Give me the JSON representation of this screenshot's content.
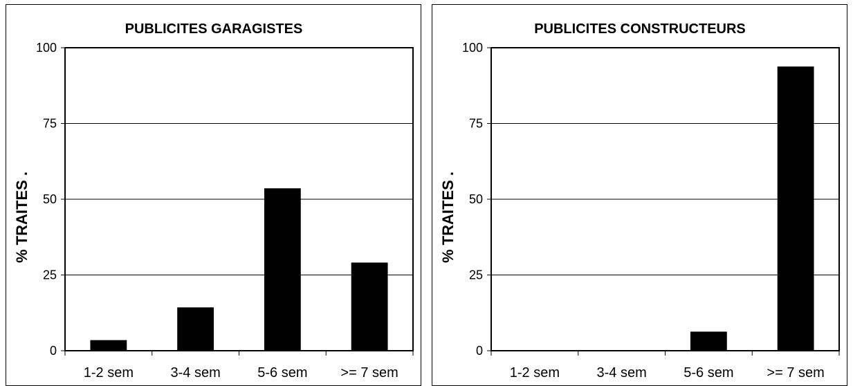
{
  "chart_data": [
    {
      "type": "bar",
      "title": "PUBLICITES GARAGISTES",
      "ylabel": "% TRAITES   .",
      "xlabel": "",
      "categories": [
        "1-2 sem",
        "3-4 sem",
        "5-6 sem",
        ">= 7 sem"
      ],
      "values": [
        3.5,
        14.3,
        53.6,
        29.1
      ],
      "ylim": [
        0,
        100
      ],
      "yticks": [
        "0",
        "25",
        "50",
        "75",
        "100"
      ],
      "grid": true,
      "bar_color": "#000000"
    },
    {
      "type": "bar",
      "title": "PUBLICITES CONSTRUCTEURS",
      "ylabel": "% TRAITES   .",
      "xlabel": "",
      "categories": [
        "1-2 sem",
        "3-4 sem",
        "5-6 sem",
        ">= 7 sem"
      ],
      "values": [
        0,
        0,
        6.3,
        93.8
      ],
      "ylim": [
        0,
        100
      ],
      "yticks": [
        "0",
        "25",
        "50",
        "75",
        "100"
      ],
      "grid": true,
      "bar_color": "#000000"
    }
  ]
}
